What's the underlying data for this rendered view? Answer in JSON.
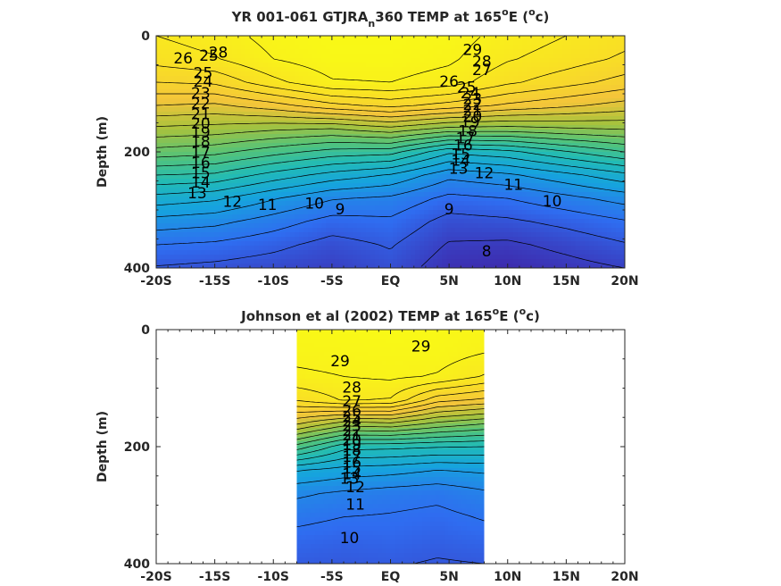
{
  "chart_data": [
    {
      "type": "contour",
      "title_parts": [
        "YR 001-061 GTJRA",
        "n",
        "360 TEMP at 165",
        "o",
        "E (",
        "o",
        "c)"
      ],
      "xlabel": "",
      "ylabel": "Depth (m)",
      "xlim": [
        -20,
        20
      ],
      "ylim": [
        0,
        400
      ],
      "y_reversed": true,
      "x_ticks": [
        -20,
        -15,
        -10,
        -5,
        0,
        5,
        10,
        15,
        20
      ],
      "x_tick_labels": [
        "-20S",
        "-15S",
        "-10S",
        "-5S",
        "EQ",
        "5N",
        "10N",
        "15N",
        "20N"
      ],
      "y_ticks": [
        0,
        200,
        400
      ],
      "y_tick_labels": [
        "0",
        "200",
        "400"
      ],
      "data_extent_x": [
        -20,
        20
      ],
      "colormap": [
        "#3e26a8",
        "#2f6cf0",
        "#16a3de",
        "#22bbb5",
        "#55c378",
        "#a9c23c",
        "#f4c53a",
        "#f9e024",
        "#f9fb15"
      ],
      "clim": [
        8,
        30
      ],
      "contour_levels": [
        8,
        9,
        10,
        11,
        12,
        13,
        14,
        15,
        16,
        17,
        18,
        19,
        20,
        21,
        22,
        23,
        24,
        25,
        26,
        27,
        28,
        29
      ],
      "temperature_profile": {
        "note": "temperature (°C) vs depth (m) at representative latitudes",
        "depth": [
          0,
          40,
          80,
          120,
          160,
          200,
          240,
          280,
          320,
          360,
          400
        ],
        "columns": [
          {
            "lat": -20,
            "temp": [
              28.0,
              27.4,
              26.0,
              24.0,
              21.8,
              19.6,
              17.0,
              14.6,
              12.6,
              11.0,
              9.9
            ]
          },
          {
            "lat": -15,
            "temp": [
              28.5,
              27.9,
              26.2,
              23.8,
              21.6,
              19.3,
              16.8,
              14.2,
              12.3,
              10.8,
              9.7
            ]
          },
          {
            "lat": -10,
            "temp": [
              29.4,
              29.0,
              27.7,
              24.6,
              21.2,
              18.4,
              15.6,
              13.1,
              11.5,
              10.3,
              9.4
            ]
          },
          {
            "lat": -5,
            "temp": [
              29.8,
              29.6,
              28.9,
              25.7,
              21.0,
              17.6,
              14.6,
              12.1,
              10.6,
              9.6,
              9.0
            ]
          },
          {
            "lat": 0,
            "temp": [
              29.8,
              29.6,
              29.0,
              26.3,
              21.7,
              17.4,
              13.9,
              11.8,
              10.8,
              10.1,
              9.6
            ]
          },
          {
            "lat": 5,
            "temp": [
              29.5,
              29.2,
              28.5,
              25.6,
              20.7,
              15.2,
              12.3,
              10.7,
              9.6,
              8.9,
              8.4
            ]
          },
          {
            "lat": 10,
            "temp": [
              28.6,
              28.1,
              27.2,
              24.8,
              20.6,
              15.7,
              12.8,
              11.0,
              9.8,
              8.8,
              8.2
            ]
          },
          {
            "lat": 15,
            "temp": [
              28.0,
              27.5,
              26.4,
              24.2,
              20.9,
              16.9,
              13.7,
              11.7,
              10.3,
              9.3,
              8.6
            ]
          },
          {
            "lat": 20,
            "temp": [
              27.4,
              26.8,
              25.6,
              23.6,
              21.1,
              18.0,
              14.7,
              12.4,
              10.9,
              9.9,
              9.0
            ]
          }
        ]
      },
      "contour_labels": [
        {
          "text": "28",
          "lat": -14.7,
          "depth": 30
        },
        {
          "text": "29",
          "lat": 7.0,
          "depth": 25
        },
        {
          "text": "26",
          "lat": -17.7,
          "depth": 40
        },
        {
          "text": "25",
          "lat": -15.5,
          "depth": 35
        },
        {
          "text": "28",
          "lat": 7.8,
          "depth": 45
        },
        {
          "text": "27",
          "lat": 7.8,
          "depth": 60
        },
        {
          "text": "25",
          "lat": -16.0,
          "depth": 65
        },
        {
          "text": "24",
          "lat": -16.0,
          "depth": 80
        },
        {
          "text": "23",
          "lat": -16.2,
          "depth": 100
        },
        {
          "text": "22",
          "lat": -16.2,
          "depth": 118
        },
        {
          "text": "21",
          "lat": -16.2,
          "depth": 136
        },
        {
          "text": "20",
          "lat": -16.2,
          "depth": 152
        },
        {
          "text": "19",
          "lat": -16.2,
          "depth": 168
        },
        {
          "text": "18",
          "lat": -16.2,
          "depth": 184
        },
        {
          "text": "17",
          "lat": -16.2,
          "depth": 202
        },
        {
          "text": "16",
          "lat": -16.2,
          "depth": 220
        },
        {
          "text": "15",
          "lat": -16.2,
          "depth": 238
        },
        {
          "text": "14",
          "lat": -16.2,
          "depth": 254
        },
        {
          "text": "13",
          "lat": -16.5,
          "depth": 272
        },
        {
          "text": "12",
          "lat": -13.5,
          "depth": 287
        },
        {
          "text": "11",
          "lat": -10.5,
          "depth": 292
        },
        {
          "text": "10",
          "lat": -6.5,
          "depth": 290
        },
        {
          "text": "9",
          "lat": -4.3,
          "depth": 300
        },
        {
          "text": "26",
          "lat": 5.0,
          "depth": 80
        },
        {
          "text": "25",
          "lat": 6.5,
          "depth": 90
        },
        {
          "text": "24",
          "lat": 6.8,
          "depth": 100
        },
        {
          "text": "23",
          "lat": 7.0,
          "depth": 110
        },
        {
          "text": "22",
          "lat": 7.0,
          "depth": 120
        },
        {
          "text": "21",
          "lat": 7.0,
          "depth": 130
        },
        {
          "text": "20",
          "lat": 7.0,
          "depth": 140
        },
        {
          "text": "19",
          "lat": 6.8,
          "depth": 150
        },
        {
          "text": "18",
          "lat": 6.6,
          "depth": 165
        },
        {
          "text": "17",
          "lat": 6.4,
          "depth": 178
        },
        {
          "text": "16",
          "lat": 6.2,
          "depth": 190
        },
        {
          "text": "15",
          "lat": 6.0,
          "depth": 205
        },
        {
          "text": "14",
          "lat": 6.0,
          "depth": 216
        },
        {
          "text": "13",
          "lat": 5.8,
          "depth": 230
        },
        {
          "text": "12",
          "lat": 8.0,
          "depth": 238
        },
        {
          "text": "11",
          "lat": 10.5,
          "depth": 258
        },
        {
          "text": "10",
          "lat": 13.8,
          "depth": 286
        },
        {
          "text": "9",
          "lat": 5.0,
          "depth": 300
        },
        {
          "text": "8",
          "lat": 8.2,
          "depth": 372
        }
      ]
    },
    {
      "type": "contour",
      "title_parts": [
        "Johnson et al (2002) TEMP at 165",
        "o",
        "E (",
        "o",
        "c)"
      ],
      "xlabel": "",
      "ylabel": "Depth (m)",
      "xlim": [
        -20,
        20
      ],
      "ylim": [
        0,
        400
      ],
      "y_reversed": true,
      "x_ticks": [
        -20,
        -15,
        -10,
        -5,
        0,
        5,
        10,
        15,
        20
      ],
      "x_tick_labels": [
        "-20S",
        "-15S",
        "-10S",
        "-5S",
        "EQ",
        "5N",
        "10N",
        "15N",
        "20N"
      ],
      "y_ticks": [
        0,
        200,
        400
      ],
      "y_tick_labels": [
        "0",
        "200",
        "400"
      ],
      "data_extent_x": [
        -8,
        8
      ],
      "colormap": [
        "#3e26a8",
        "#2f6cf0",
        "#16a3de",
        "#22bbb5",
        "#55c378",
        "#a9c23c",
        "#f4c53a",
        "#f9e024",
        "#f9fb15"
      ],
      "clim": [
        8,
        30
      ],
      "contour_levels": [
        10,
        11,
        12,
        13,
        14,
        15,
        16,
        17,
        18,
        19,
        20,
        21,
        22,
        23,
        24,
        25,
        26,
        27,
        28,
        29
      ],
      "temperature_profile": {
        "note": "temperature (°C) vs depth (m) at representative latitudes",
        "depth": [
          0,
          40,
          80,
          120,
          160,
          200,
          240,
          280,
          320,
          360,
          400
        ],
        "columns": [
          {
            "lat": -8,
            "temp": [
              29.6,
              29.3,
              28.8,
              27.1,
              23.2,
              18.6,
              14.1,
              12.2,
              11.3,
              10.6,
              10.1
            ]
          },
          {
            "lat": -4,
            "temp": [
              29.7,
              29.4,
              29.0,
              28.1,
              21.6,
              16.4,
              13.6,
              11.8,
              11.0,
              10.4,
              10.0
            ]
          },
          {
            "lat": 0,
            "temp": [
              29.8,
              29.5,
              29.2,
              27.9,
              21.9,
              16.3,
              13.4,
              11.5,
              10.9,
              10.5,
              10.1
            ]
          },
          {
            "lat": 4,
            "temp": [
              29.7,
              29.5,
              28.9,
              25.4,
              20.8,
              16.1,
              13.0,
              11.3,
              10.7,
              10.3,
              9.9
            ]
          },
          {
            "lat": 8,
            "temp": [
              29.4,
              29.0,
              27.9,
              24.8,
              20.1,
              16.0,
              13.2,
              11.8,
              11.1,
              10.5,
              10.0
            ]
          }
        ]
      },
      "contour_labels": [
        {
          "text": "29",
          "lat": 2.6,
          "depth": 30
        },
        {
          "text": "29",
          "lat": -4.3,
          "depth": 55
        },
        {
          "text": "28",
          "lat": -3.3,
          "depth": 100
        },
        {
          "text": "27",
          "lat": -3.3,
          "depth": 124
        },
        {
          "text": "26",
          "lat": -3.3,
          "depth": 140
        },
        {
          "text": "25",
          "lat": -3.3,
          "depth": 150
        },
        {
          "text": "24",
          "lat": -3.3,
          "depth": 158
        },
        {
          "text": "23",
          "lat": -3.3,
          "depth": 166
        },
        {
          "text": "22",
          "lat": -3.3,
          "depth": 174
        },
        {
          "text": "21",
          "lat": -3.3,
          "depth": 182
        },
        {
          "text": "20",
          "lat": -3.3,
          "depth": 190
        },
        {
          "text": "19",
          "lat": -3.3,
          "depth": 198
        },
        {
          "text": "18",
          "lat": -3.3,
          "depth": 208
        },
        {
          "text": "17",
          "lat": -3.3,
          "depth": 218
        },
        {
          "text": "16",
          "lat": -3.3,
          "depth": 228
        },
        {
          "text": "15",
          "lat": -3.3,
          "depth": 238
        },
        {
          "text": "14",
          "lat": -3.3,
          "depth": 248
        },
        {
          "text": "13",
          "lat": -3.5,
          "depth": 256
        },
        {
          "text": "12",
          "lat": -3.0,
          "depth": 270
        },
        {
          "text": "11",
          "lat": -3.0,
          "depth": 300
        },
        {
          "text": "10",
          "lat": -3.5,
          "depth": 357
        }
      ]
    }
  ]
}
